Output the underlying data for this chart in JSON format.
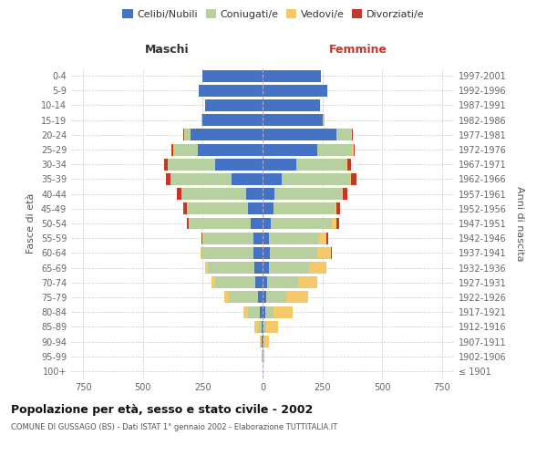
{
  "age_groups": [
    "100+",
    "95-99",
    "90-94",
    "85-89",
    "80-84",
    "75-79",
    "70-74",
    "65-69",
    "60-64",
    "55-59",
    "50-54",
    "45-49",
    "40-44",
    "35-39",
    "30-34",
    "25-29",
    "20-24",
    "15-19",
    "10-14",
    "5-9",
    "0-4"
  ],
  "birth_years": [
    "≤ 1901",
    "1902-1906",
    "1907-1911",
    "1912-1916",
    "1917-1921",
    "1922-1926",
    "1927-1931",
    "1932-1936",
    "1937-1941",
    "1942-1946",
    "1947-1951",
    "1952-1956",
    "1957-1961",
    "1962-1966",
    "1967-1971",
    "1972-1976",
    "1977-1981",
    "1982-1986",
    "1987-1991",
    "1992-1996",
    "1997-2001"
  ],
  "maschi": {
    "celibi": [
      0,
      1,
      2,
      5,
      10,
      20,
      30,
      35,
      40,
      38,
      50,
      60,
      70,
      130,
      200,
      270,
      300,
      250,
      240,
      265,
      250
    ],
    "coniugati": [
      0,
      1,
      3,
      15,
      50,
      120,
      170,
      195,
      215,
      210,
      255,
      255,
      270,
      255,
      195,
      100,
      25,
      5,
      0,
      0,
      0
    ],
    "vedovi": [
      0,
      3,
      8,
      15,
      20,
      20,
      15,
      10,
      5,
      3,
      2,
      1,
      0,
      0,
      0,
      5,
      3,
      0,
      0,
      0,
      0
    ],
    "divorziati": [
      0,
      0,
      0,
      0,
      0,
      0,
      0,
      0,
      0,
      5,
      10,
      15,
      20,
      20,
      15,
      5,
      3,
      0,
      0,
      0,
      0
    ]
  },
  "femmine": {
    "nubili": [
      0,
      1,
      2,
      5,
      10,
      15,
      20,
      25,
      30,
      28,
      35,
      45,
      50,
      80,
      140,
      230,
      310,
      250,
      240,
      270,
      245
    ],
    "coniugate": [
      0,
      1,
      5,
      10,
      35,
      85,
      130,
      170,
      200,
      205,
      255,
      255,
      280,
      285,
      210,
      145,
      60,
      10,
      0,
      0,
      0
    ],
    "vedove": [
      1,
      5,
      20,
      50,
      80,
      90,
      80,
      70,
      55,
      35,
      20,
      10,
      5,
      3,
      3,
      5,
      5,
      0,
      0,
      0,
      0
    ],
    "divorziate": [
      0,
      0,
      0,
      0,
      0,
      0,
      0,
      0,
      5,
      5,
      10,
      15,
      20,
      25,
      15,
      5,
      3,
      0,
      0,
      0,
      0
    ]
  },
  "colors": {
    "celibi_nubili": "#4472c4",
    "coniugati_e": "#b8cfa0",
    "vedovi_e": "#f5c96a",
    "divorziati_e": "#c0392b"
  },
  "xlim": 800,
  "title": "Popolazione per età, sesso e stato civile - 2002",
  "subtitle": "COMUNE DI GUSSAGO (BS) - Dati ISTAT 1° gennaio 2002 - Elaborazione TUTTITALIA.IT",
  "xlabel_left": "Maschi",
  "xlabel_right": "Femmine",
  "ylabel_left": "Fasce di età",
  "ylabel_right": "Anni di nascita",
  "bg_color": "#ffffff",
  "grid_color": "#cccccc",
  "bar_height": 0.8
}
